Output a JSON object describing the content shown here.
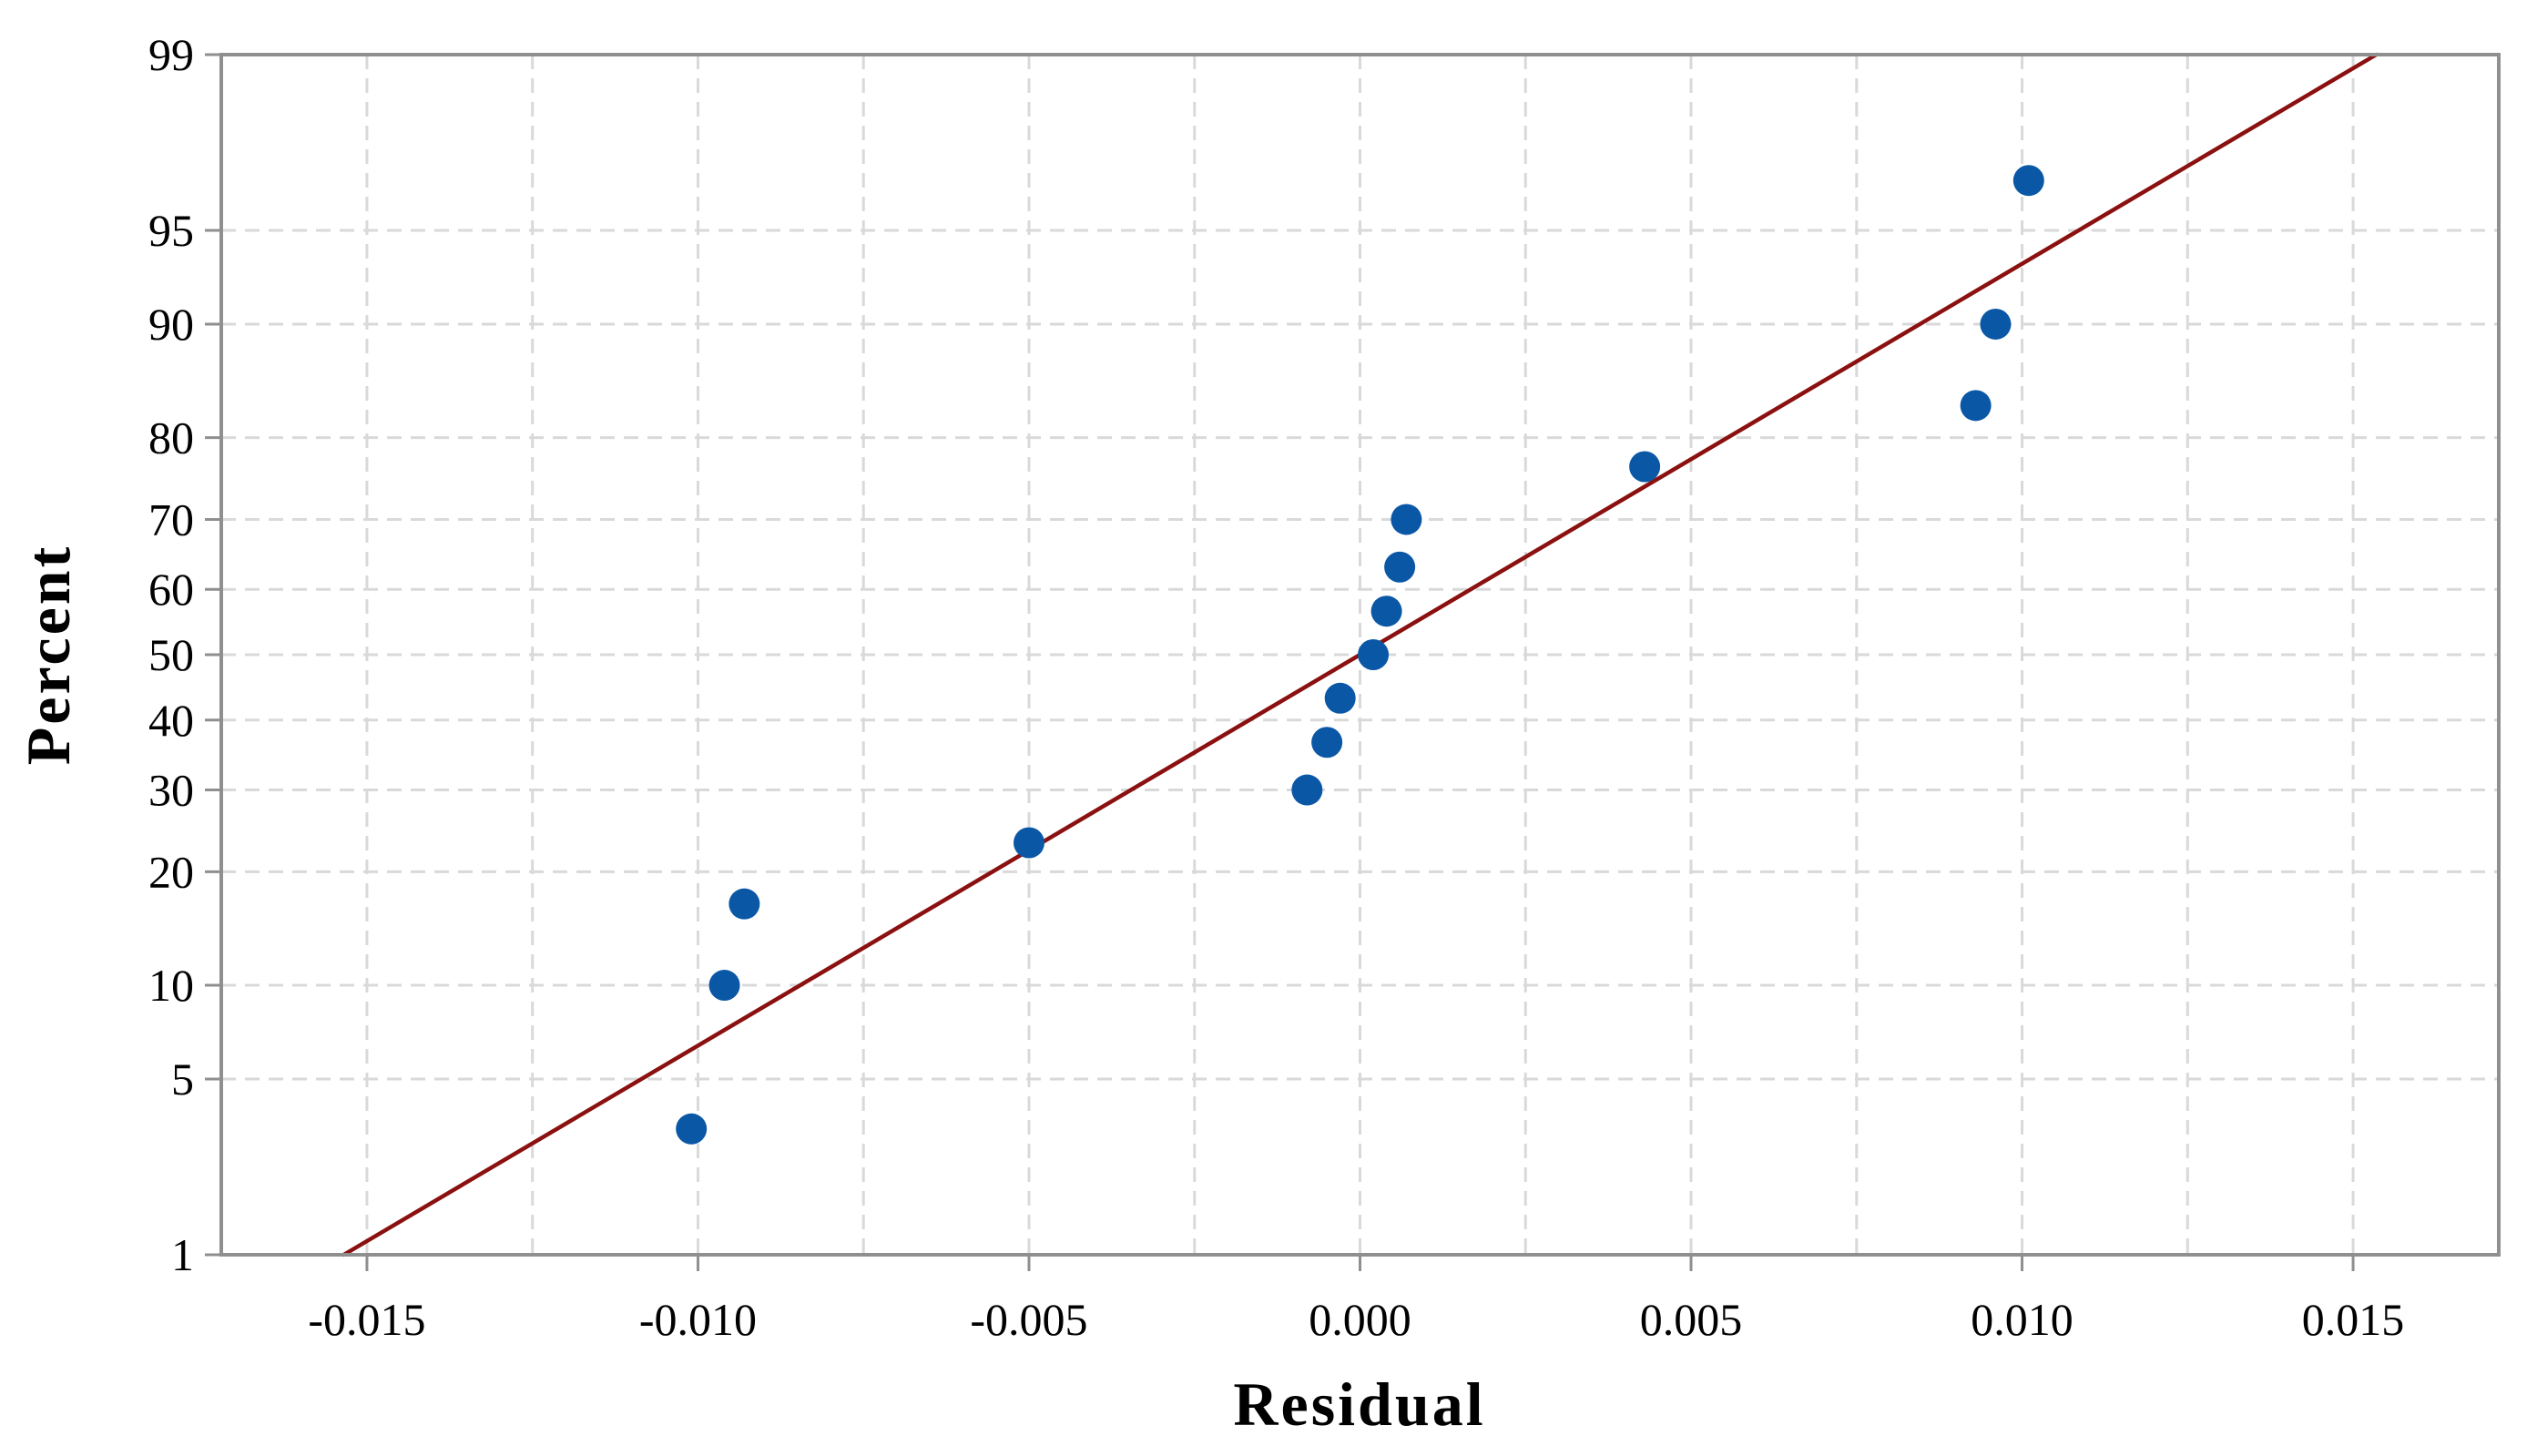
{
  "chart_data": {
    "type": "scatter",
    "title": "",
    "xlabel": "Residual",
    "ylabel": "Percent",
    "xlim": [
      -0.0172,
      0.0172
    ],
    "ylim": [
      1,
      99
    ],
    "y_scale": "normal-probability",
    "grid": true,
    "legend": "none",
    "x_ticks": [
      -0.015,
      -0.01,
      -0.005,
      0.0,
      0.005,
      0.01,
      0.015
    ],
    "x_tick_labels": [
      "-0.015",
      "-0.010",
      "-0.005",
      "0.000",
      "0.005",
      "0.010",
      "0.015"
    ],
    "x_minor_gridlines": [
      -0.0125,
      -0.0075,
      -0.0025,
      0.0025,
      0.0075,
      0.0125
    ],
    "y_ticks": [
      1,
      5,
      10,
      20,
      30,
      40,
      50,
      60,
      70,
      80,
      90,
      95,
      99
    ],
    "y_tick_labels": [
      "1",
      "5",
      "10",
      "20",
      "30",
      "40",
      "50",
      "60",
      "70",
      "80",
      "90",
      "95",
      "99"
    ],
    "points": {
      "x": [
        -0.0101,
        -0.0096,
        -0.0093,
        -0.005,
        -0.0008,
        -0.0005,
        -0.0003,
        0.0002,
        0.0004,
        0.0006,
        0.0007,
        0.0043,
        0.0093,
        0.0096,
        0.0101
      ],
      "y": [
        3.3,
        10.0,
        16.7,
        23.3,
        30.0,
        36.7,
        43.3,
        50.0,
        56.7,
        63.3,
        70.0,
        76.7,
        83.3,
        90.0,
        96.7
      ]
    },
    "fit_line": {
      "x": [
        -0.01535,
        0.01535
      ],
      "y": [
        1,
        99
      ]
    },
    "colors": {
      "points": "#0a57a6",
      "fit_line": "#8b1010",
      "grid": "#d9d9d9",
      "frame": "#8f8f8f",
      "text": "#000000"
    }
  }
}
